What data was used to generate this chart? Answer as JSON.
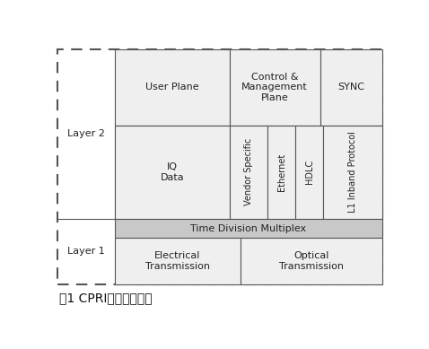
{
  "title": "图1 CPRI协议基本结构",
  "bg_color": "#ffffff",
  "outer_border_color": "#555555",
  "box_fill_light": "#efefef",
  "box_fill_medium": "#c8c8c8",
  "box_stroke": "#555555",
  "text_color": "#222222",
  "layer1_label": "Layer 1",
  "layer2_label": "Layer 2",
  "user_plane_label": "User Plane",
  "control_label": "Control &\nManagement\nPlane",
  "sync_label": "SYNC",
  "iq_data_label": "IQ\nData",
  "vendor_label": "Vendor Specific",
  "ethernet_label": "Ethernet",
  "hdlc_label": "HDLC",
  "l1_inband_label": "L1 Inband Protocol",
  "tdm_label": "Time Division Multiplex",
  "elec_label": "Electrical\nTransmission",
  "optical_label": "Optical\nTransmission",
  "title_fontsize": 10,
  "label_fontsize": 8,
  "small_fontsize": 7
}
